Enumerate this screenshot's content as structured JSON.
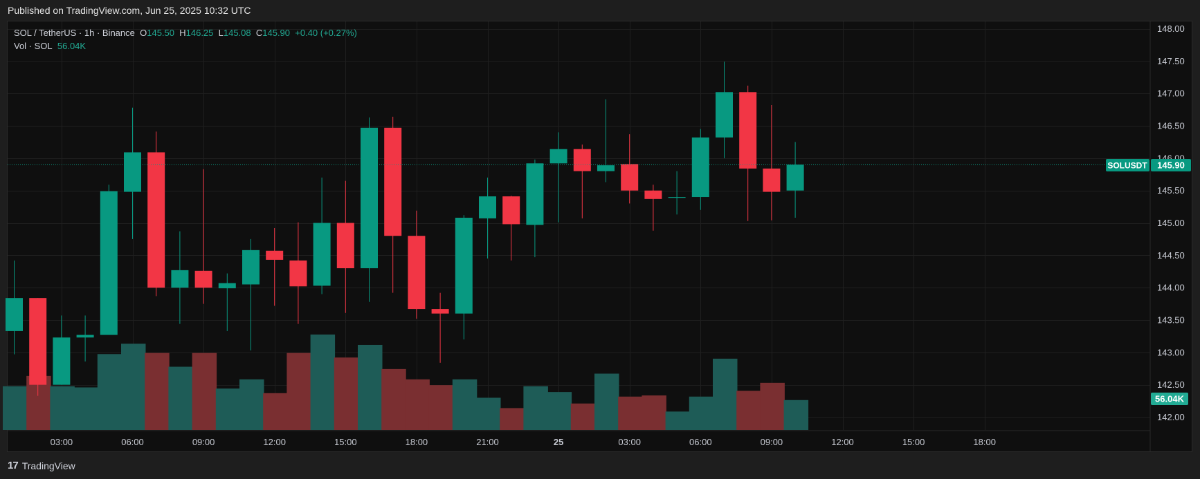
{
  "header": {
    "published": "Published on TradingView.com, Jun 25, 2025 10:32 UTC"
  },
  "legend": {
    "symbol": "SOL / TetherUS · 1h · Binance",
    "o_label": "O",
    "o": "145.50",
    "h_label": "H",
    "h": "146.25",
    "l_label": "L",
    "l": "145.08",
    "c_label": "C",
    "c": "145.90",
    "change": "+0.40 (+0.27%)",
    "vol_label": "Vol · SOL",
    "vol": "56.04K"
  },
  "footer": {
    "logo_mark": "17",
    "brand": "TradingView"
  },
  "colors": {
    "up": "#089981",
    "down": "#f23645",
    "vol_up": "#1e5c57",
    "vol_down": "#7a2f31",
    "bg": "#0f0f0f",
    "grid": "#1f1f1f"
  },
  "chart_data": {
    "type": "candlestick",
    "symbol_badge": "SOLUSDT",
    "last_price": "145.90",
    "last_volume": "56.04K",
    "y_ticks": [
      "148.00",
      "147.50",
      "147.00",
      "146.50",
      "146.00",
      "145.50",
      "145.00",
      "144.50",
      "144.00",
      "143.50",
      "143.00",
      "142.50",
      "142.00"
    ],
    "ylim": [
      141.85,
      148.05
    ],
    "x_ticks": [
      {
        "label": "03:00",
        "bar": 2
      },
      {
        "label": "06:00",
        "bar": 5
      },
      {
        "label": "09:00",
        "bar": 8
      },
      {
        "label": "12:00",
        "bar": 11
      },
      {
        "label": "15:00",
        "bar": 14
      },
      {
        "label": "18:00",
        "bar": 17
      },
      {
        "label": "21:00",
        "bar": 20
      },
      {
        "label": "25",
        "bar": 23,
        "bold": true
      },
      {
        "label": "03:00",
        "bar": 26
      },
      {
        "label": "06:00",
        "bar": 29
      },
      {
        "label": "09:00",
        "bar": 32
      },
      {
        "label": "12:00",
        "bar": 35
      },
      {
        "label": "15:00",
        "bar": 38
      },
      {
        "label": "18:00",
        "bar": 41
      }
    ],
    "candles": [
      {
        "o": 143.33,
        "h": 144.42,
        "l": 142.97,
        "c": 143.84,
        "v": 0.38
      },
      {
        "o": 143.84,
        "h": 143.84,
        "l": 142.33,
        "c": 142.5,
        "v": 0.47
      },
      {
        "o": 142.5,
        "h": 143.57,
        "l": 142.5,
        "c": 143.23,
        "v": 0.38
      },
      {
        "o": 143.23,
        "h": 143.57,
        "l": 142.86,
        "c": 143.27,
        "v": 0.37
      },
      {
        "o": 143.27,
        "h": 145.59,
        "l": 143.27,
        "c": 145.49,
        "v": 0.66
      },
      {
        "o": 145.48,
        "h": 146.78,
        "l": 144.75,
        "c": 146.09,
        "v": 0.75
      },
      {
        "o": 146.09,
        "h": 146.41,
        "l": 143.87,
        "c": 144.0,
        "v": 0.67
      },
      {
        "o": 144.0,
        "h": 144.87,
        "l": 143.44,
        "c": 144.27,
        "v": 0.55
      },
      {
        "o": 144.26,
        "h": 145.83,
        "l": 143.75,
        "c": 144.0,
        "v": 0.67
      },
      {
        "o": 143.99,
        "h": 144.22,
        "l": 143.33,
        "c": 144.07,
        "v": 0.36
      },
      {
        "o": 144.05,
        "h": 144.75,
        "l": 143.03,
        "c": 144.58,
        "v": 0.44
      },
      {
        "o": 144.57,
        "h": 144.92,
        "l": 143.72,
        "c": 144.43,
        "v": 0.32
      },
      {
        "o": 144.42,
        "h": 145.01,
        "l": 143.44,
        "c": 144.02,
        "v": 0.67
      },
      {
        "o": 144.03,
        "h": 145.7,
        "l": 143.9,
        "c": 145.0,
        "v": 0.83
      },
      {
        "o": 145.0,
        "h": 145.65,
        "l": 143.61,
        "c": 144.3,
        "v": 0.63
      },
      {
        "o": 144.3,
        "h": 146.63,
        "l": 143.78,
        "c": 146.47,
        "v": 0.74
      },
      {
        "o": 146.47,
        "h": 146.64,
        "l": 143.92,
        "c": 144.8,
        "v": 0.53
      },
      {
        "o": 144.8,
        "h": 145.19,
        "l": 143.52,
        "c": 143.67,
        "v": 0.44
      },
      {
        "o": 143.67,
        "h": 143.92,
        "l": 142.84,
        "c": 143.6,
        "v": 0.39
      },
      {
        "o": 143.6,
        "h": 145.12,
        "l": 143.2,
        "c": 145.08,
        "v": 0.44
      },
      {
        "o": 145.07,
        "h": 145.7,
        "l": 144.45,
        "c": 145.41,
        "v": 0.28
      },
      {
        "o": 145.41,
        "h": 145.42,
        "l": 144.42,
        "c": 144.98,
        "v": 0.19
      },
      {
        "o": 144.97,
        "h": 145.98,
        "l": 144.47,
        "c": 145.92,
        "v": 0.38
      },
      {
        "o": 145.92,
        "h": 146.4,
        "l": 145.01,
        "c": 146.14,
        "v": 0.33
      },
      {
        "o": 146.14,
        "h": 146.21,
        "l": 145.07,
        "c": 145.8,
        "v": 0.23
      },
      {
        "o": 145.8,
        "h": 146.91,
        "l": 145.63,
        "c": 145.89,
        "v": 0.49
      },
      {
        "o": 145.91,
        "h": 146.37,
        "l": 145.3,
        "c": 145.5,
        "v": 0.29
      },
      {
        "o": 145.5,
        "h": 145.59,
        "l": 144.88,
        "c": 145.37,
        "v": 0.3
      },
      {
        "o": 145.39,
        "h": 145.8,
        "l": 145.13,
        "c": 145.4,
        "v": 0.16
      },
      {
        "o": 145.4,
        "h": 146.45,
        "l": 145.2,
        "c": 146.32,
        "v": 0.29
      },
      {
        "o": 146.32,
        "h": 147.49,
        "l": 146.0,
        "c": 147.02,
        "v": 0.62
      },
      {
        "o": 147.02,
        "h": 147.12,
        "l": 145.03,
        "c": 145.84,
        "v": 0.34
      },
      {
        "o": 145.84,
        "h": 146.82,
        "l": 145.04,
        "c": 145.48,
        "v": 0.41
      },
      {
        "o": 145.5,
        "h": 146.25,
        "l": 145.08,
        "c": 145.9,
        "v": 0.26
      }
    ]
  }
}
